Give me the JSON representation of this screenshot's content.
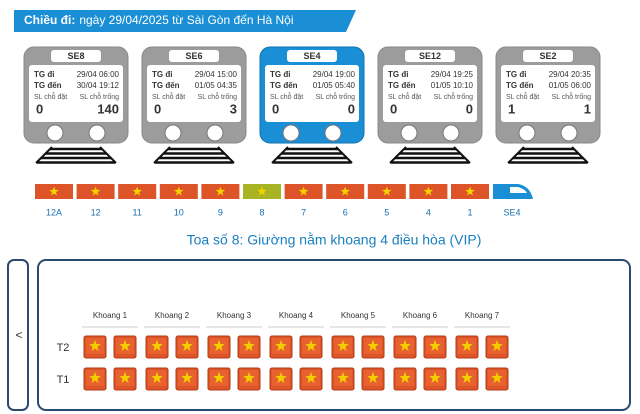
{
  "header": {
    "label": "Chiều đi:",
    "text": "ngày 29/04/2025 từ Sài Gòn đến Hà Nội"
  },
  "trains": [
    {
      "name": "SE8",
      "depart_label": "TG đi",
      "depart": "29/04 06:00",
      "arrive_label": "TG đến",
      "arrive": "30/04 19:12",
      "booked_label": "SL chỗ đặt",
      "free_label": "SL chỗ trống",
      "booked": 0,
      "free": 140,
      "selected": false
    },
    {
      "name": "SE6",
      "depart_label": "TG đi",
      "depart": "29/04 15:00",
      "arrive_label": "TG đến",
      "arrive": "01/05 04:35",
      "booked_label": "SL chỗ đặt",
      "free_label": "SL chỗ trống",
      "booked": 0,
      "free": 3,
      "selected": false
    },
    {
      "name": "SE4",
      "depart_label": "TG đi",
      "depart": "29/04 19:00",
      "arrive_label": "TG đến",
      "arrive": "01/05 05:40",
      "booked_label": "SL chỗ đặt",
      "free_label": "SL chỗ trống",
      "booked": 0,
      "free": 0,
      "selected": true
    },
    {
      "name": "SE12",
      "depart_label": "TG đi",
      "depart": "29/04 19:25",
      "arrive_label": "TG đến",
      "arrive": "01/05 10:10",
      "booked_label": "SL chỗ đặt",
      "free_label": "SL chỗ trống",
      "booked": 0,
      "free": 0,
      "selected": false
    },
    {
      "name": "SE2",
      "depart_label": "TG đi",
      "depart": "29/04 20:35",
      "arrive_label": "TG đến",
      "arrive": "01/05 06:00",
      "booked_label": "SL chỗ đặt",
      "free_label": "SL chỗ trống",
      "booked": 1,
      "free": 1,
      "selected": false
    }
  ],
  "cars": {
    "labels": [
      "12A",
      "12",
      "11",
      "10",
      "9",
      "8",
      "7",
      "6",
      "5",
      "4",
      "1"
    ],
    "engine": "SE4",
    "selected": "8"
  },
  "coach_title": "Toa số 8: Giường nằm khoang 4 điều hòa (VIP)",
  "seat_map": {
    "prev": "<",
    "compartments": [
      "Khoang 1",
      "Khoang 2",
      "Khoang 3",
      "Khoang 4",
      "Khoang 5",
      "Khoang 6",
      "Khoang 7"
    ],
    "rows": [
      "T2",
      "T1"
    ]
  }
}
